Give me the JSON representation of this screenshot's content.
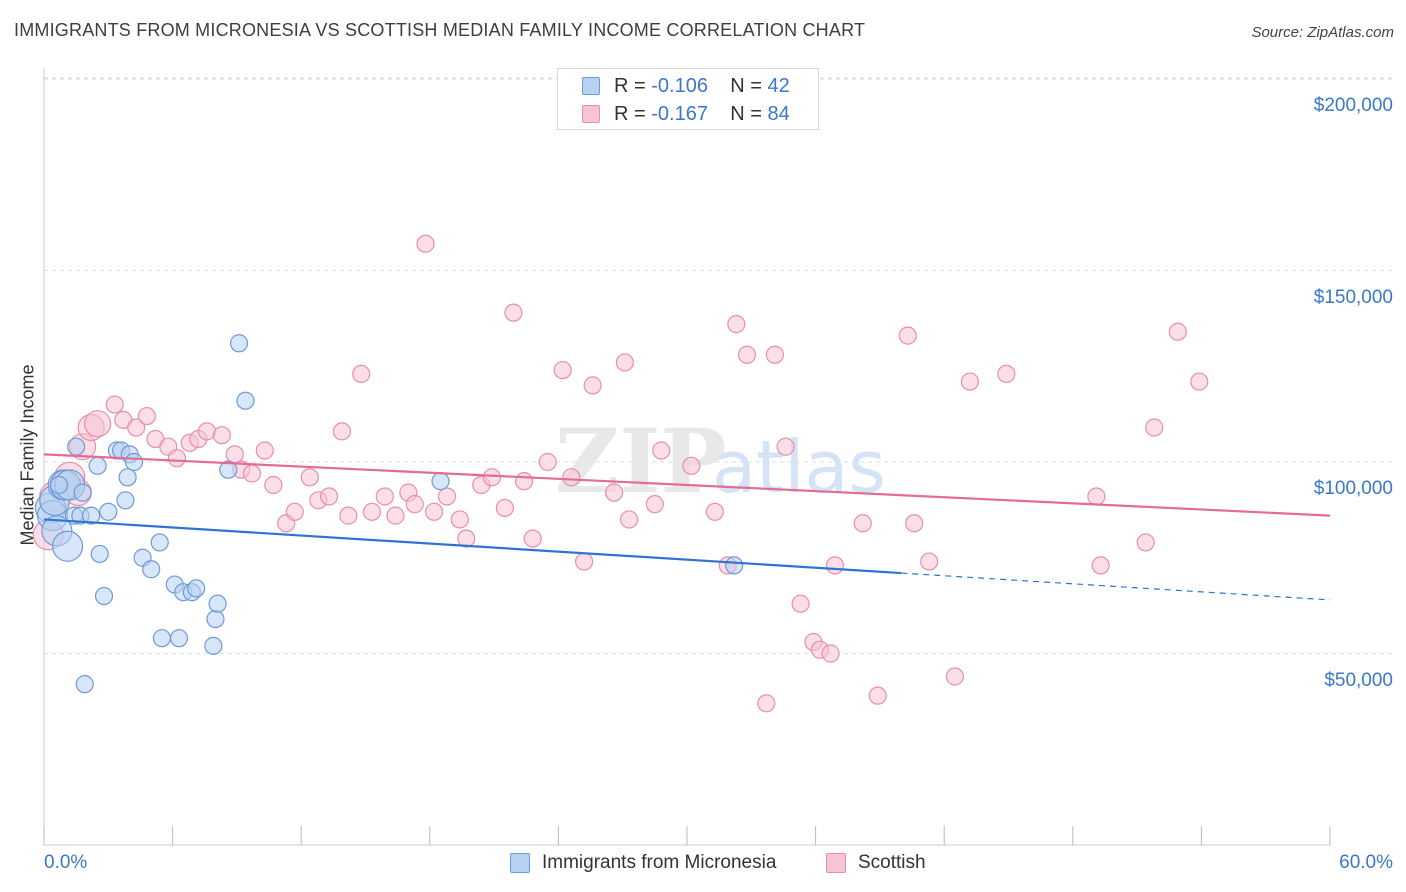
{
  "header": {
    "title": "IMMIGRANTS FROM MICRONESIA VS SCOTTISH MEDIAN FAMILY INCOME CORRELATION CHART",
    "source": "Source: ZipAtlas.com"
  },
  "legend_stats": {
    "r_label": "R =",
    "n_label": "N =",
    "series": [
      {
        "r": "-0.106",
        "n": "42"
      },
      {
        "r": "-0.167",
        "n": "84"
      }
    ]
  },
  "watermark": {
    "zip": "ZIP",
    "atlas": "atlas"
  },
  "colors": {
    "blue_fill": "#b7d1f3",
    "blue_stroke": "#6f9ad6",
    "blue_line": "#2f74d0",
    "pink_fill": "#f8c3d3",
    "pink_stroke": "#e88fab",
    "pink_line": "#e36c96",
    "tick_label": "#3a78c9",
    "grid": "#dddddd"
  },
  "chart_data": {
    "type": "scatter",
    "title": "IMMIGRANTS FROM MICRONESIA VS SCOTTISH MEDIAN FAMILY INCOME CORRELATION CHART",
    "xlabel": "",
    "ylabel": "Median Family Income",
    "xlim": [
      0,
      60
    ],
    "ylim": [
      0,
      210000
    ],
    "x_tick_labels": [
      "0.0%",
      "60.0%"
    ],
    "y_ticks": [
      50000,
      100000,
      150000,
      200000
    ],
    "y_tick_labels": [
      "$50,000",
      "$100,000",
      "$150,000",
      "$200,000"
    ],
    "grid": "horizontal dashed",
    "legend_position": "bottom-center",
    "series": [
      {
        "name": "Immigrants from Micronesia",
        "color": "#b7d1f3",
        "points": [
          [
            0.3,
            88000
          ],
          [
            0.4,
            86000
          ],
          [
            0.5,
            90000
          ],
          [
            0.6,
            82000
          ],
          [
            0.9,
            94000
          ],
          [
            1.0,
            94000
          ],
          [
            1.1,
            78000
          ],
          [
            1.2,
            94000
          ],
          [
            1.4,
            86000
          ],
          [
            1.5,
            104000
          ],
          [
            1.7,
            86000
          ],
          [
            1.8,
            92000
          ],
          [
            1.9,
            42000
          ],
          [
            2.2,
            86000
          ],
          [
            2.5,
            99000
          ],
          [
            2.6,
            76000
          ],
          [
            2.8,
            65000
          ],
          [
            3.0,
            87000
          ],
          [
            3.4,
            103000
          ],
          [
            3.6,
            103000
          ],
          [
            3.8,
            90000
          ],
          [
            3.9,
            96000
          ],
          [
            4.0,
            102000
          ],
          [
            4.2,
            100000
          ],
          [
            4.6,
            75000
          ],
          [
            5.0,
            72000
          ],
          [
            5.4,
            79000
          ],
          [
            5.5,
            54000
          ],
          [
            6.1,
            68000
          ],
          [
            6.3,
            54000
          ],
          [
            6.5,
            66000
          ],
          [
            6.9,
            66000
          ],
          [
            7.1,
            67000
          ],
          [
            7.9,
            52000
          ],
          [
            8.0,
            59000
          ],
          [
            8.1,
            63000
          ],
          [
            8.6,
            98000
          ],
          [
            9.1,
            131000
          ],
          [
            9.4,
            116000
          ],
          [
            18.5,
            95000
          ],
          [
            32.2,
            73000
          ],
          [
            0.7,
            94000
          ]
        ],
        "trend": {
          "x": [
            0,
            40
          ],
          "y": [
            85000,
            71000
          ],
          "dashed_extension": {
            "x": [
              40,
              60
            ],
            "y": [
              71000,
              64000
            ]
          }
        }
      },
      {
        "name": "Scottish",
        "color": "#f8c3d3",
        "points": [
          [
            0.2,
            81000
          ],
          [
            0.5,
            91000
          ],
          [
            1.2,
            96000
          ],
          [
            1.6,
            92000
          ],
          [
            1.8,
            104000
          ],
          [
            2.2,
            109000
          ],
          [
            2.5,
            110000
          ],
          [
            3.3,
            115000
          ],
          [
            3.7,
            111000
          ],
          [
            4.3,
            109000
          ],
          [
            4.8,
            112000
          ],
          [
            5.2,
            106000
          ],
          [
            5.8,
            104000
          ],
          [
            6.2,
            101000
          ],
          [
            6.8,
            105000
          ],
          [
            7.2,
            106000
          ],
          [
            7.6,
            108000
          ],
          [
            8.3,
            107000
          ],
          [
            8.9,
            102000
          ],
          [
            9.2,
            98000
          ],
          [
            9.7,
            97000
          ],
          [
            10.3,
            103000
          ],
          [
            10.7,
            94000
          ],
          [
            11.3,
            84000
          ],
          [
            11.7,
            87000
          ],
          [
            12.4,
            96000
          ],
          [
            12.8,
            90000
          ],
          [
            13.3,
            91000
          ],
          [
            13.9,
            108000
          ],
          [
            14.2,
            86000
          ],
          [
            14.8,
            123000
          ],
          [
            15.3,
            87000
          ],
          [
            15.9,
            91000
          ],
          [
            16.4,
            86000
          ],
          [
            17.0,
            92000
          ],
          [
            17.3,
            89000
          ],
          [
            17.8,
            157000
          ],
          [
            18.2,
            87000
          ],
          [
            18.8,
            91000
          ],
          [
            19.4,
            85000
          ],
          [
            19.7,
            80000
          ],
          [
            20.4,
            94000
          ],
          [
            20.9,
            96000
          ],
          [
            21.5,
            88000
          ],
          [
            21.9,
            139000
          ],
          [
            22.4,
            95000
          ],
          [
            22.8,
            80000
          ],
          [
            23.5,
            100000
          ],
          [
            24.2,
            124000
          ],
          [
            24.6,
            96000
          ],
          [
            25.2,
            74000
          ],
          [
            25.6,
            120000
          ],
          [
            26.6,
            92000
          ],
          [
            27.1,
            126000
          ],
          [
            27.3,
            85000
          ],
          [
            28.5,
            89000
          ],
          [
            28.8,
            103000
          ],
          [
            30.2,
            99000
          ],
          [
            31.3,
            87000
          ],
          [
            31.9,
            73000
          ],
          [
            32.3,
            136000
          ],
          [
            32.8,
            128000
          ],
          [
            33.7,
            37000
          ],
          [
            34.1,
            128000
          ],
          [
            34.6,
            104000
          ],
          [
            35.3,
            63000
          ],
          [
            35.9,
            53000
          ],
          [
            36.2,
            51000
          ],
          [
            36.7,
            50000
          ],
          [
            36.9,
            73000
          ],
          [
            38.2,
            84000
          ],
          [
            38.9,
            39000
          ],
          [
            40.3,
            133000
          ],
          [
            40.6,
            84000
          ],
          [
            41.3,
            74000
          ],
          [
            42.5,
            44000
          ],
          [
            43.2,
            121000
          ],
          [
            44.9,
            123000
          ],
          [
            49.1,
            91000
          ],
          [
            49.3,
            73000
          ],
          [
            51.4,
            79000
          ],
          [
            51.8,
            109000
          ],
          [
            52.9,
            134000
          ],
          [
            53.9,
            121000
          ]
        ],
        "trend": {
          "x": [
            0,
            60
          ],
          "y": [
            102000,
            86000
          ]
        }
      }
    ]
  }
}
